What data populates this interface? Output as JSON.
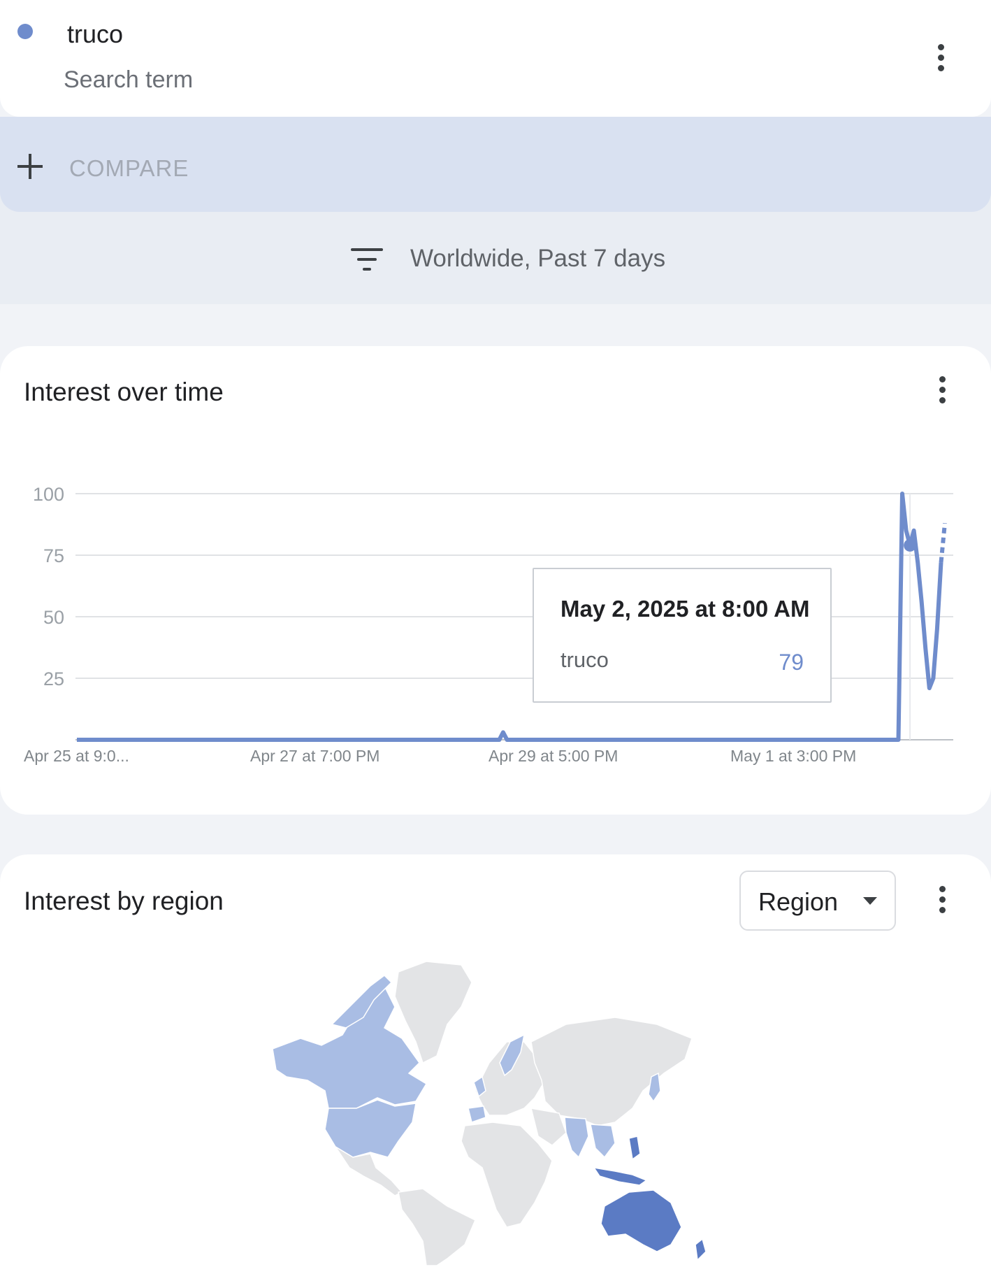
{
  "search_term": {
    "name": "truco",
    "subtitle": "Search term",
    "color": "#6f8ccc"
  },
  "compare": {
    "label": "COMPARE"
  },
  "filter": {
    "label": "Worldwide, Past 7 days"
  },
  "interest_over_time": {
    "title": "Interest over time",
    "tooltip": {
      "date": "May 2, 2025 at 8:00 AM",
      "term": "truco",
      "value": "79"
    }
  },
  "chart_data": {
    "type": "line",
    "x_ticks": [
      "Apr 25 at 9:0...",
      "Apr 27 at 7:00 PM",
      "Apr 29 at 5:00 PM",
      "May 1 at 3:00 PM"
    ],
    "y_ticks": [
      "100",
      "75",
      "50",
      "25"
    ],
    "ylim": [
      0,
      100
    ],
    "grid": true,
    "series": [
      {
        "name": "truco",
        "color": "#6f8ccc",
        "values": [
          0,
          0,
          0,
          0,
          0,
          0,
          0,
          0,
          0,
          0,
          0,
          0,
          0,
          0,
          0,
          0,
          0,
          0,
          0,
          0,
          0,
          0,
          0,
          0,
          0,
          0,
          0,
          0,
          0,
          0,
          0,
          0,
          0,
          0,
          0,
          0,
          0,
          0,
          0,
          0,
          0,
          0,
          0,
          0,
          0,
          0,
          0,
          0,
          0,
          0,
          0,
          0,
          0,
          0,
          0,
          0,
          0,
          0,
          0,
          0,
          0,
          0,
          0,
          0,
          0,
          0,
          0,
          0,
          0,
          0,
          0,
          0,
          0,
          0,
          0,
          0,
          0,
          0,
          0,
          0,
          0,
          0,
          0,
          0,
          0,
          0,
          0,
          0,
          0,
          0,
          0,
          0,
          0,
          0,
          0,
          0,
          0,
          0,
          0,
          0,
          0,
          0,
          0,
          0,
          0,
          0,
          0,
          0,
          0,
          0,
          3,
          0,
          0,
          0,
          0,
          0,
          0,
          0,
          0,
          0,
          0,
          0,
          0,
          0,
          0,
          0,
          0,
          0,
          0,
          0,
          0,
          0,
          0,
          0,
          0,
          0,
          0,
          0,
          0,
          0,
          0,
          0,
          0,
          0,
          0,
          0,
          0,
          0,
          0,
          0,
          0,
          0,
          0,
          0,
          0,
          0,
          0,
          0,
          0,
          0,
          0,
          0,
          0,
          0,
          0,
          0,
          0,
          0,
          0,
          0,
          0,
          0,
          0,
          0,
          0,
          0,
          0,
          0,
          0,
          0,
          0,
          0,
          0,
          0,
          0,
          0,
          0,
          0,
          0,
          0,
          0,
          0,
          0,
          0,
          0,
          0,
          0,
          0,
          0,
          0,
          0,
          0,
          0,
          0,
          0,
          0,
          0,
          0,
          0,
          0,
          0,
          0,
          0,
          100,
          85,
          79,
          85,
          72,
          56,
          37,
          21,
          25,
          45,
          72,
          88
        ]
      }
    ],
    "highlight": {
      "value": 79
    }
  },
  "interest_by_region": {
    "title": "Interest by region",
    "select_value": "Region",
    "map_colors": {
      "high": "#5b7bc4",
      "medium": "#a9bde4",
      "none": "#e3e4e6"
    }
  }
}
